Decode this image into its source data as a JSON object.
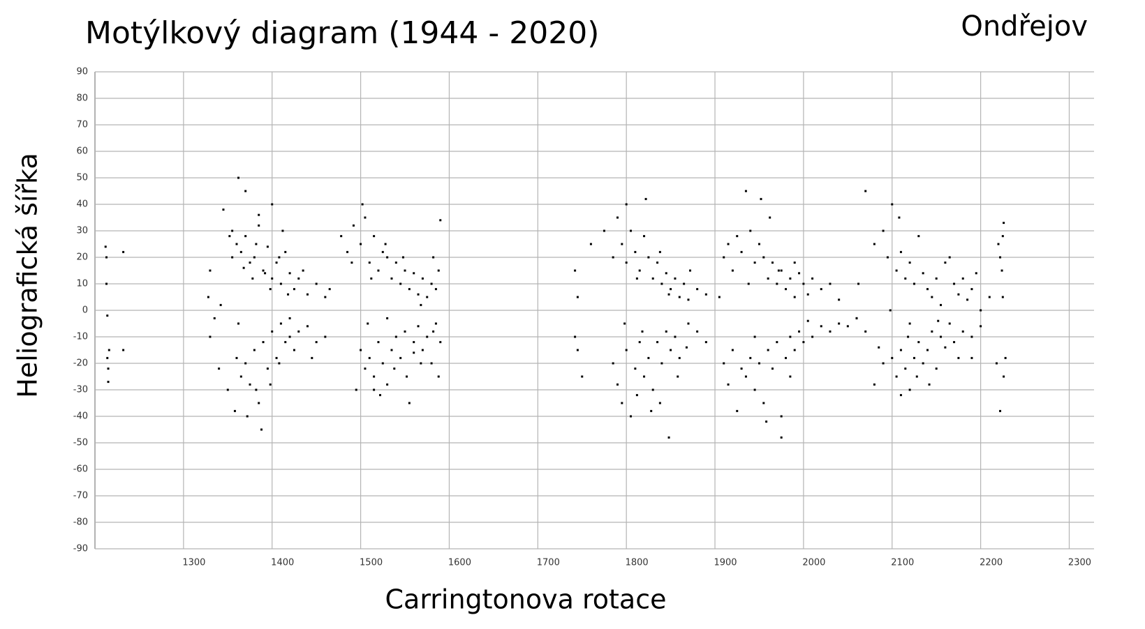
{
  "chart_data": {
    "type": "scatter",
    "title": "Motýlkový diagram (1944 - 2020)",
    "subtitle": "Ondřejov",
    "x_label": "Carringtonova rotace",
    "y_label": "Heliografická šířka",
    "color": "#000000",
    "grid": true,
    "xlim": [
      1200,
      2328
    ],
    "xticks": [
      1300,
      1400,
      1500,
      1600,
      1700,
      1800,
      1900,
      2000,
      2100,
      2200,
      2300
    ],
    "ylim": [
      -90,
      90
    ],
    "yticks": [
      -90,
      -80,
      -70,
      -60,
      -50,
      -40,
      -30,
      -20,
      -10,
      0,
      10,
      20,
      30,
      40,
      50,
      60,
      70,
      80,
      90
    ],
    "x": [
      1212,
      1213,
      1214,
      1215,
      1216,
      1213,
      1215,
      1214,
      1232,
      1232,
      1330,
      1345,
      1355,
      1360,
      1365,
      1370,
      1375,
      1380,
      1385,
      1390,
      1395,
      1400,
      1405,
      1410,
      1415,
      1420,
      1425,
      1430,
      1440,
      1450,
      1460,
      1465,
      1370,
      1385,
      1400,
      1412,
      1398,
      1378,
      1362,
      1355,
      1328,
      1335,
      1342,
      1352,
      1368,
      1382,
      1392,
      1408,
      1418,
      1435,
      1330,
      1340,
      1350,
      1360,
      1365,
      1370,
      1375,
      1380,
      1385,
      1390,
      1395,
      1400,
      1405,
      1410,
      1415,
      1420,
      1425,
      1430,
      1440,
      1450,
      1372,
      1388,
      1398,
      1408,
      1358,
      1382,
      1362,
      1420,
      1445,
      1460,
      1478,
      1485,
      1492,
      1500,
      1505,
      1510,
      1515,
      1520,
      1525,
      1530,
      1535,
      1540,
      1545,
      1550,
      1555,
      1560,
      1565,
      1570,
      1575,
      1580,
      1585,
      1588,
      1490,
      1502,
      1512,
      1528,
      1548,
      1568,
      1582,
      1590,
      1495,
      1500,
      1505,
      1510,
      1515,
      1520,
      1525,
      1530,
      1535,
      1540,
      1545,
      1550,
      1555,
      1560,
      1565,
      1570,
      1575,
      1580,
      1585,
      1590,
      1508,
      1522,
      1538,
      1552,
      1568,
      1582,
      1588,
      1530,
      1515,
      1560,
      1742,
      1745,
      1760,
      1775,
      1785,
      1790,
      1795,
      1800,
      1805,
      1810,
      1815,
      1820,
      1825,
      1830,
      1835,
      1840,
      1845,
      1850,
      1855,
      1860,
      1865,
      1870,
      1880,
      1890,
      1800,
      1812,
      1822,
      1838,
      1848,
      1872,
      1742,
      1745,
      1750,
      1785,
      1790,
      1795,
      1800,
      1805,
      1810,
      1815,
      1820,
      1825,
      1830,
      1835,
      1840,
      1845,
      1850,
      1855,
      1860,
      1870,
      1880,
      1890,
      1798,
      1812,
      1828,
      1848,
      1858,
      1838,
      1818,
      1868,
      1905,
      1910,
      1915,
      1920,
      1925,
      1930,
      1935,
      1940,
      1945,
      1950,
      1955,
      1960,
      1965,
      1970,
      1975,
      1980,
      1985,
      1990,
      1995,
      2000,
      2005,
      2010,
      2020,
      2030,
      2040,
      1952,
      1962,
      1972,
      1938,
      1990,
      1910,
      1915,
      1920,
      1925,
      1930,
      1935,
      1940,
      1945,
      1950,
      1955,
      1960,
      1965,
      1970,
      1975,
      1980,
      1985,
      1990,
      1995,
      2000,
      2010,
      2020,
      2030,
      2040,
      2050,
      2060,
      1958,
      1975,
      1945,
      1985,
      2005,
      2070,
      2080,
      2090,
      2095,
      2100,
      2105,
      2110,
      2115,
      2120,
      2125,
      2130,
      2135,
      2140,
      2150,
      2160,
      2170,
      2175,
      2180,
      2190,
      2195,
      2145,
      2155,
      2165,
      2185,
      2120,
      2108,
      2200,
      2210,
      2062,
      2098,
      2080,
      2090,
      2100,
      2105,
      2110,
      2115,
      2120,
      2125,
      2130,
      2135,
      2140,
      2145,
      2150,
      2155,
      2160,
      2165,
      2170,
      2180,
      2190,
      2200,
      2110,
      2128,
      2142,
      2152,
      2118,
      2175,
      2060,
      2070,
      2085,
      2190,
      2220,
      2222,
      2224,
      2225,
      2226,
      2218,
      2222,
      2226,
      2228,
      2225
    ],
    "values": [
      24,
      20,
      -18,
      -22,
      -15,
      10,
      -27,
      -2,
      22,
      -15,
      15,
      38,
      30,
      25,
      22,
      28,
      18,
      20,
      32,
      15,
      24,
      12,
      18,
      10,
      22,
      14,
      8,
      12,
      6,
      10,
      5,
      8,
      45,
      36,
      40,
      30,
      8,
      12,
      50,
      20,
      5,
      -3,
      2,
      28,
      16,
      25,
      14,
      20,
      6,
      15,
      -10,
      -22,
      -30,
      -18,
      -25,
      -20,
      -28,
      -15,
      -35,
      -12,
      -22,
      -8,
      -18,
      -5,
      -12,
      -10,
      -15,
      -8,
      -6,
      -12,
      -40,
      -45,
      -28,
      -20,
      -38,
      -30,
      -5,
      -3,
      -18,
      -10,
      28,
      22,
      32,
      25,
      35,
      18,
      28,
      15,
      22,
      20,
      12,
      18,
      10,
      15,
      8,
      14,
      6,
      12,
      5,
      10,
      8,
      15,
      18,
      40,
      12,
      25,
      20,
      2,
      20,
      34,
      -30,
      -15,
      -22,
      -18,
      -25,
      -12,
      -20,
      -28,
      -15,
      -10,
      -18,
      -8,
      -35,
      -12,
      -6,
      -15,
      -10,
      -20,
      -5,
      -12,
      -5,
      -32,
      -22,
      -25,
      -20,
      -8,
      -25,
      -3,
      -30,
      -16,
      15,
      5,
      25,
      30,
      20,
      35,
      25,
      18,
      30,
      22,
      15,
      28,
      20,
      12,
      18,
      10,
      14,
      8,
      12,
      5,
      10,
      4,
      8,
      6,
      40,
      12,
      42,
      22,
      6,
      15,
      -10,
      -15,
      -25,
      -20,
      -28,
      -35,
      -15,
      -40,
      -22,
      -12,
      -25,
      -18,
      -30,
      -12,
      -20,
      -8,
      -15,
      -10,
      -18,
      -5,
      -8,
      -12,
      -5,
      -32,
      -38,
      -48,
      -25,
      -35,
      -8,
      -14,
      5,
      20,
      25,
      15,
      28,
      22,
      45,
      30,
      18,
      25,
      20,
      12,
      18,
      10,
      15,
      8,
      12,
      5,
      14,
      10,
      6,
      12,
      8,
      10,
      4,
      42,
      35,
      15,
      10,
      18,
      -20,
      -28,
      -15,
      -38,
      -22,
      -25,
      -18,
      -30,
      -20,
      -35,
      -15,
      -22,
      -12,
      -48,
      -18,
      -10,
      -15,
      -8,
      -12,
      -10,
      -6,
      -8,
      -5,
      -6,
      -3,
      -42,
      -40,
      -10,
      -25,
      -4,
      45,
      25,
      30,
      20,
      40,
      15,
      22,
      12,
      18,
      10,
      28,
      14,
      8,
      12,
      18,
      10,
      6,
      12,
      8,
      14,
      5,
      2,
      20,
      4,
      -5,
      35,
      0,
      5,
      10,
      0,
      -28,
      -20,
      -18,
      -25,
      -15,
      -22,
      -30,
      -18,
      -12,
      -20,
      -15,
      -8,
      -22,
      -10,
      -14,
      -5,
      -12,
      -8,
      -10,
      -6,
      -32,
      -25,
      -28,
      -4,
      -10,
      -18,
      -3,
      -8,
      -14,
      -18,
      25,
      20,
      15,
      28,
      33,
      -20,
      -38,
      -25,
      -18,
      5
    ]
  }
}
